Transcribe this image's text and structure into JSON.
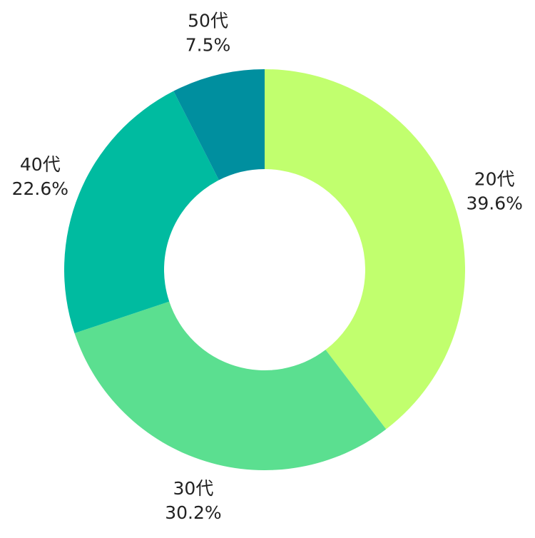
{
  "chart_data": {
    "type": "donut",
    "categories": [
      "20代",
      "30代",
      "40代",
      "50代"
    ],
    "values": [
      39.6,
      30.2,
      22.6,
      7.5
    ],
    "value_labels": [
      "39.6%",
      "30.2%",
      "22.6%",
      "7.5%"
    ],
    "colors": [
      "#c1ff6e",
      "#5bdf90",
      "#00bba0",
      "#008f9f"
    ]
  }
}
